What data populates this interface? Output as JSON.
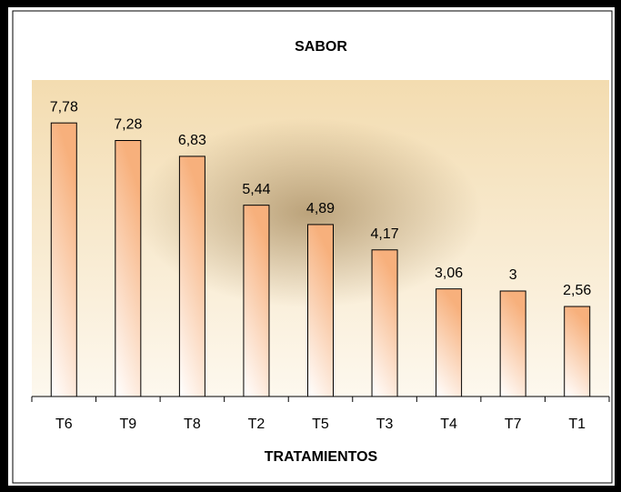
{
  "chart_data": {
    "type": "bar",
    "title": "SABOR",
    "x_label": "TRATAMIENTOS",
    "categories": [
      "T6",
      "T9",
      "T8",
      "T2",
      "T5",
      "T3",
      "T4",
      "T7",
      "T1"
    ],
    "values": [
      7.78,
      7.28,
      6.83,
      5.44,
      4.89,
      4.17,
      3.06,
      3,
      2.56
    ],
    "value_labels": [
      "7,78",
      "7,28",
      "6,83",
      "5,44",
      "4,89",
      "4,17",
      "3,06",
      "3",
      "2,56"
    ],
    "color": "#f7b07c",
    "ylim": [
      0,
      9
    ]
  }
}
